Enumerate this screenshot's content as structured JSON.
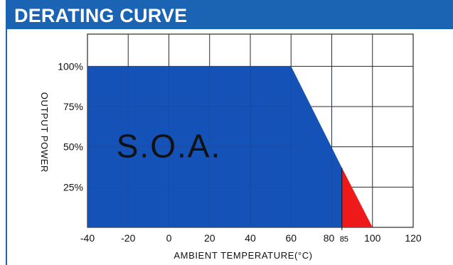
{
  "header": {
    "title": "DERATING CURVE"
  },
  "chart_data": {
    "type": "area",
    "title": "DERATING CURVE",
    "xlabel": "AMBIENT TEMPERATURE(°C)",
    "ylabel": "OUTPUT POWER",
    "xlim": [
      -40,
      120
    ],
    "ylim": [
      0,
      120
    ],
    "x_ticks": [
      -40,
      -20,
      0,
      20,
      40,
      60,
      80,
      100,
      120
    ],
    "x_tick_labels": [
      "-40",
      "-20",
      "0",
      "20",
      "40",
      "60",
      "80",
      "100",
      "120"
    ],
    "extra_x_tick": {
      "value": 85,
      "label": "85"
    },
    "y_ticks": [
      25,
      50,
      75,
      100
    ],
    "y_tick_labels": [
      "25%",
      "50%",
      "75%",
      "100%"
    ],
    "grid": true,
    "series": [
      {
        "name": "S.O.A.",
        "color": "#1452b8",
        "x": [
          -40,
          60,
          85,
          85,
          -40
        ],
        "y": [
          100,
          100,
          37,
          0,
          0
        ]
      },
      {
        "color": "#ee1a1a",
        "x": [
          85,
          100,
          85
        ],
        "y": [
          37,
          0,
          0
        ]
      }
    ],
    "annotations": [
      {
        "text": "S.O.A.",
        "x": 0,
        "y": 50
      }
    ]
  }
}
